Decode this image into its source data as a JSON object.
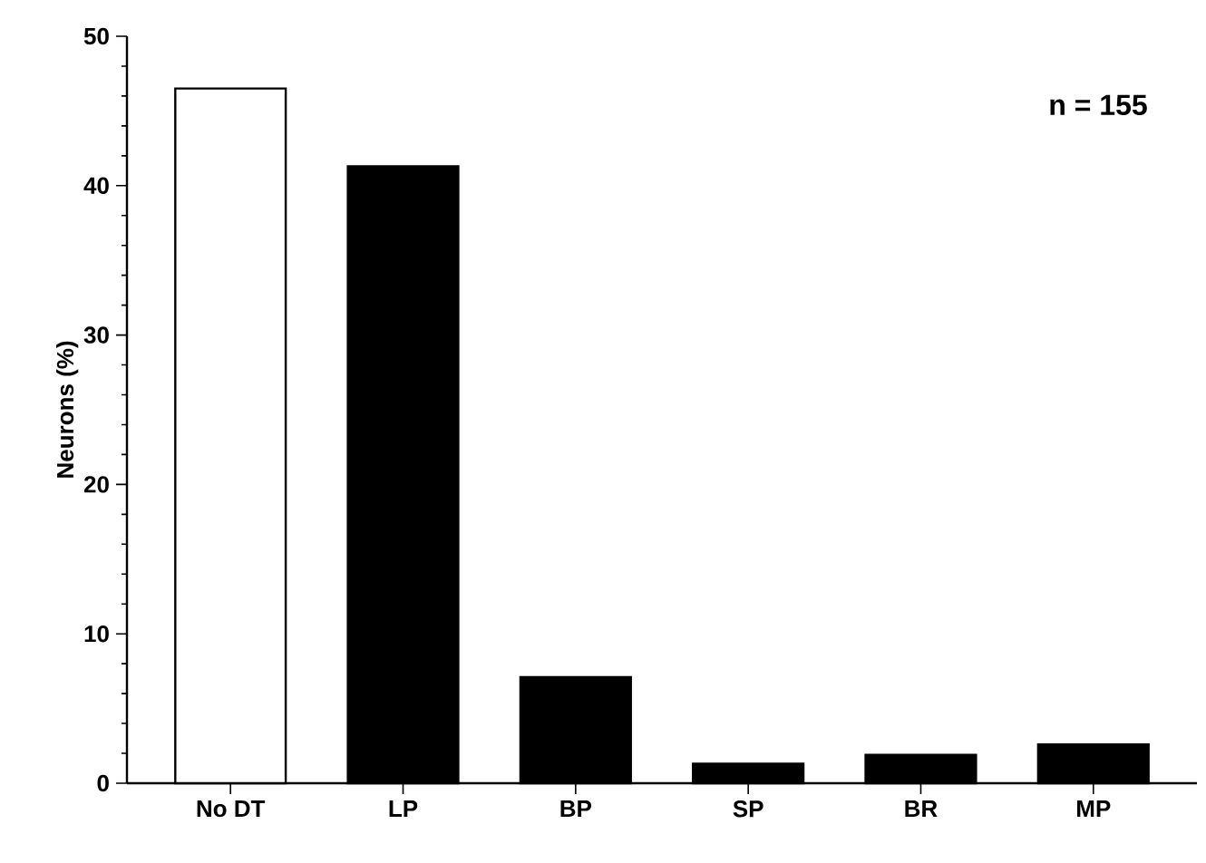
{
  "chart_data": {
    "type": "bar",
    "ylabel": "Neurons (%)",
    "categories": [
      "No DT",
      "LP",
      "BP",
      "SP",
      "BR",
      "MP"
    ],
    "values": [
      46.5,
      41.3,
      7.1,
      1.3,
      1.9,
      2.6
    ],
    "colors": [
      "#ffffff",
      "#000000",
      "#000000",
      "#000000",
      "#000000",
      "#000000"
    ],
    "ylim": [
      0,
      50
    ],
    "yticks": [
      0,
      10,
      20,
      30,
      40,
      50
    ],
    "grid": false,
    "annotations": [
      "n = 155"
    ]
  }
}
